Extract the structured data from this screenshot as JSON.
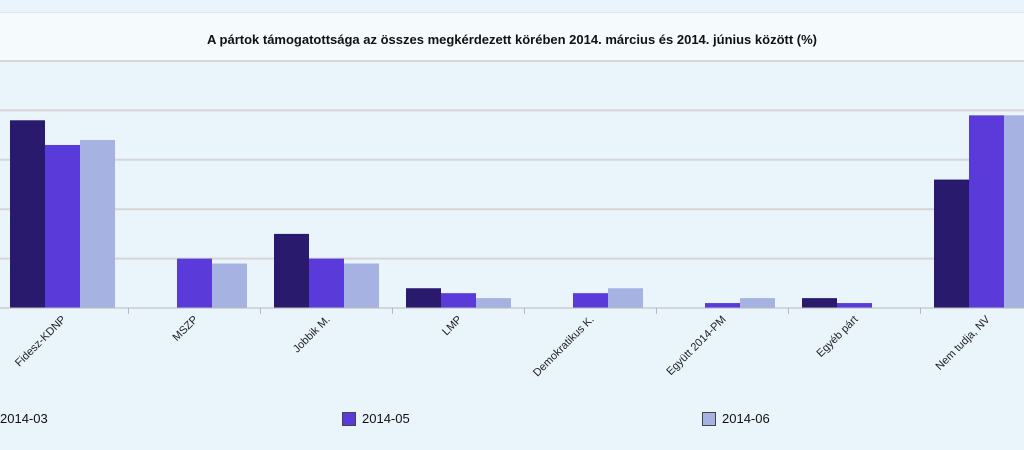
{
  "chart_data": {
    "type": "bar",
    "title": "A pártok támogatottsága az összes megkérdezett körében 2014. március és 2014. június között (%)",
    "categories": [
      "Fidesz-KDNP",
      "MSZP",
      "Jobbik M.",
      "LMP",
      "Demokratikus K.",
      "Együtt 2014-PM",
      "Egyéb párt",
      "Nem tudja, NV"
    ],
    "series": [
      {
        "name": "2014-03",
        "color": "#2a1a6e",
        "values": [
          38,
          0,
          15,
          4,
          0,
          0,
          2,
          26
        ]
      },
      {
        "name": "2014-05",
        "color": "#5a3ad8",
        "values": [
          33,
          10,
          10,
          3,
          3,
          1,
          1,
          39
        ]
      },
      {
        "name": "2014-06",
        "color": "#a6b2e2",
        "values": [
          34,
          9,
          9,
          2,
          4,
          2,
          0,
          39
        ]
      }
    ],
    "ylim": [
      0,
      50
    ],
    "grid": true,
    "legend_position": "bottom"
  }
}
